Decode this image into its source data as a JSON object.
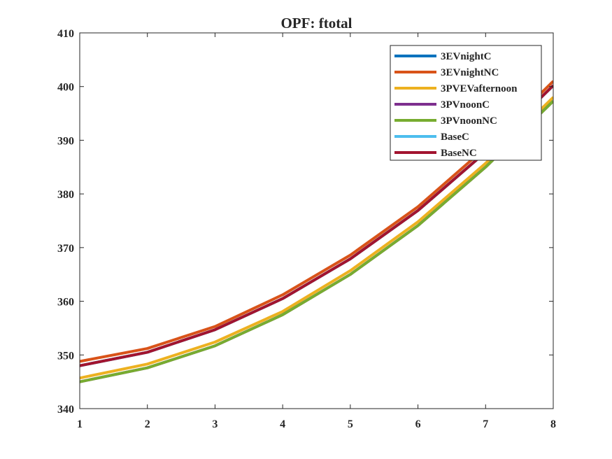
{
  "chart_data": {
    "type": "line",
    "title": "OPF: ftotal",
    "xlabel": "",
    "ylabel": "",
    "xlim": [
      1,
      8
    ],
    "ylim": [
      340,
      410
    ],
    "xticks": [
      1,
      2,
      3,
      4,
      5,
      6,
      7,
      8
    ],
    "yticks": [
      340,
      350,
      360,
      370,
      380,
      390,
      400,
      410
    ],
    "grid": false,
    "legend_position": "top-right",
    "x": [
      1,
      2,
      3,
      4,
      5,
      6,
      7,
      8
    ],
    "series": [
      {
        "name": "3EVnightC",
        "color": "#0072BD",
        "values": [
          348.0,
          350.5,
          354.7,
          360.5,
          367.9,
          376.9,
          387.8,
          400.2
        ]
      },
      {
        "name": "3EVnightNC",
        "color": "#D95319",
        "values": [
          348.8,
          351.2,
          355.3,
          361.2,
          368.6,
          377.6,
          388.6,
          401.0
        ]
      },
      {
        "name": "3PVEVafternoon",
        "color": "#EDB120",
        "values": [
          345.7,
          348.3,
          352.4,
          358.1,
          365.7,
          374.8,
          385.7,
          398.0
        ]
      },
      {
        "name": "3PVnoonC",
        "color": "#7E2F8E",
        "values": [
          345.0,
          347.6,
          351.7,
          357.5,
          365.0,
          374.1,
          385.0,
          397.3
        ]
      },
      {
        "name": "3PVnoonNC",
        "color": "#77AC30",
        "values": [
          345.0,
          347.6,
          351.7,
          357.5,
          365.0,
          374.1,
          385.0,
          397.3
        ]
      },
      {
        "name": "BaseC",
        "color": "#4DBEEE",
        "values": [
          348.0,
          350.5,
          354.7,
          360.5,
          367.9,
          376.9,
          387.8,
          400.2
        ]
      },
      {
        "name": "BaseNC",
        "color": "#A2142F",
        "values": [
          348.0,
          350.5,
          354.7,
          360.5,
          367.9,
          376.9,
          387.8,
          400.2
        ]
      }
    ]
  }
}
